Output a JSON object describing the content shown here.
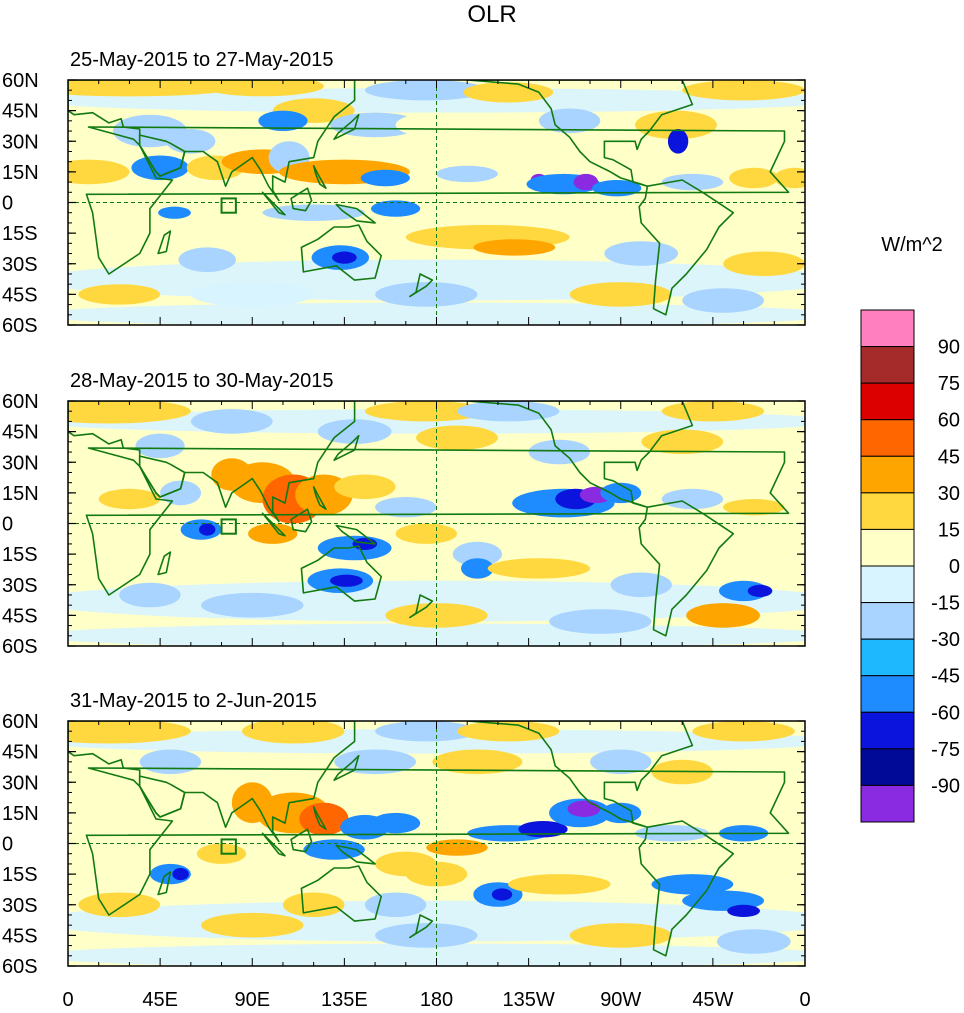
{
  "title": "OLR",
  "panels": [
    {
      "label": "25-May-2015 to 27-May-2015"
    },
    {
      "label": "28-May-2015 to 30-May-2015"
    },
    {
      "label": "31-May-2015 to 2-Jun-2015"
    }
  ],
  "lat_ticks": [
    "60N",
    "45N",
    "30N",
    "15N",
    "0",
    "15S",
    "30S",
    "45S",
    "60S"
  ],
  "lon_ticks": [
    "0",
    "45E",
    "90E",
    "135E",
    "180",
    "135W",
    "90W",
    "45W",
    "0"
  ],
  "colorbar": {
    "unit_label": "W/m^2",
    "levels": [
      "90",
      "75",
      "60",
      "45",
      "30",
      "15",
      "0",
      "-15",
      "-30",
      "-45",
      "-60",
      "-75",
      "-90"
    ],
    "colors": [
      "#ff7fbf",
      "#a52a2a",
      "#dd0000",
      "#ff6600",
      "#ffa500",
      "#ffd840",
      "#ffffc8",
      "#d8f4ff",
      "#a8d4ff",
      "#1eb8ff",
      "#1e8cff",
      "#0a14dc",
      "#000a96",
      "#8a2be2"
    ]
  },
  "map_colors": {
    "coast": "#127a12",
    "pos1": "#ffffc8",
    "pos2": "#ffd840",
    "pos3": "#ffa500",
    "pos4": "#ff6600",
    "neg1": "#d8f4ff",
    "neg2": "#a8d4ff",
    "neg3": "#1e8cff",
    "neg4": "#0a14dc",
    "neg5": "#8a2be2"
  }
}
